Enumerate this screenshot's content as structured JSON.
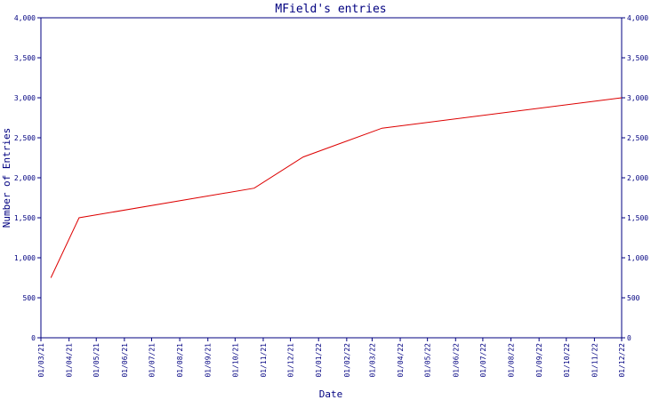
{
  "chart_data": {
    "type": "line",
    "title": "MField's entries",
    "xlabel": "Date",
    "ylabel": "Number of Entries",
    "x_ticks": [
      "01/03/21",
      "01/04/21",
      "01/05/21",
      "01/06/21",
      "01/07/21",
      "01/08/21",
      "01/09/21",
      "01/10/21",
      "01/11/21",
      "01/12/21",
      "01/01/22",
      "01/02/22",
      "01/03/22",
      "01/04/22",
      "01/05/22",
      "01/06/22",
      "01/07/22",
      "01/08/22",
      "01/09/22",
      "01/10/22",
      "01/11/22",
      "01/12/22"
    ],
    "y_ticks": [
      "0",
      "500",
      "1,000",
      "1,500",
      "2,000",
      "2,500",
      "3,000",
      "3,500",
      "4,000"
    ],
    "ylim": [
      0,
      4000
    ],
    "xlim": [
      "2021-03-01",
      "2022-12-01"
    ],
    "grid": false,
    "series": [
      {
        "color": "#dd0000",
        "points": [
          {
            "x": "2021-03-12",
            "y": 750
          },
          {
            "x": "2021-04-12",
            "y": 1500
          },
          {
            "x": "2021-10-22",
            "y": 1870
          },
          {
            "x": "2021-12-15",
            "y": 2260
          },
          {
            "x": "2022-03-12",
            "y": 2620
          },
          {
            "x": "2022-12-01",
            "y": 3000
          }
        ]
      }
    ],
    "colors": {
      "axis": "#000080",
      "text": "#000080",
      "line": "#dd0000"
    }
  }
}
